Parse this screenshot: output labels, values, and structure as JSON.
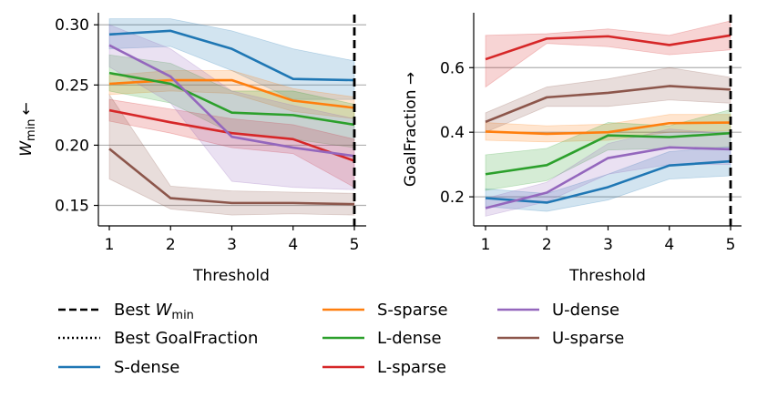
{
  "colors": {
    "S-dense": "#1f77b4",
    "S-sparse": "#ff7f0e",
    "L-dense": "#2ca02c",
    "L-sparse": "#d62728",
    "U-dense": "#9467bd",
    "U-sparse": "#8c564b",
    "grid": "#b0b0b0",
    "axis": "#000000"
  },
  "legend": {
    "best_wmin_prefix": "Best ",
    "best_wmin_var": "W",
    "best_wmin_sub": "min",
    "best_goalfraction": "Best GoalFraction",
    "s_dense": "S-dense",
    "s_sparse": "S-sparse",
    "l_dense": "L-dense",
    "l_sparse": "L-sparse",
    "u_dense": "U-dense",
    "u_sparse": "U-sparse"
  },
  "chart_data": [
    {
      "type": "line",
      "xlabel": "Threshold",
      "ylabel_var": "W",
      "ylabel_sub": "min",
      "ylabel_arrow": "←",
      "x": [
        1,
        2,
        3,
        4,
        5
      ],
      "xticks": [
        "1",
        "2",
        "3",
        "4",
        "5"
      ],
      "yticks": [
        "0.15",
        "0.20",
        "0.25",
        "0.30"
      ],
      "ytick_values": [
        0.15,
        0.2,
        0.25,
        0.3
      ],
      "ylim": [
        0.133,
        0.31
      ],
      "grid": "horizontal",
      "best_line_x": 5,
      "series": [
        {
          "name": "S-dense",
          "values": [
            0.292,
            0.295,
            0.28,
            0.255,
            0.254
          ],
          "lower": [
            0.28,
            0.282,
            0.262,
            0.238,
            0.238
          ],
          "upper": [
            0.305,
            0.305,
            0.295,
            0.28,
            0.27
          ]
        },
        {
          "name": "S-sparse",
          "values": [
            0.251,
            0.254,
            0.254,
            0.237,
            0.231
          ],
          "lower": [
            0.242,
            0.245,
            0.243,
            0.228,
            0.222
          ],
          "upper": [
            0.258,
            0.262,
            0.262,
            0.247,
            0.24
          ]
        },
        {
          "name": "L-dense",
          "values": [
            0.26,
            0.251,
            0.227,
            0.225,
            0.217
          ],
          "lower": [
            0.245,
            0.235,
            0.21,
            0.205,
            0.198
          ],
          "upper": [
            0.275,
            0.268,
            0.245,
            0.245,
            0.234
          ]
        },
        {
          "name": "L-sparse",
          "values": [
            0.229,
            0.219,
            0.21,
            0.205,
            0.187
          ],
          "lower": [
            0.22,
            0.21,
            0.198,
            0.193,
            0.165
          ],
          "upper": [
            0.238,
            0.23,
            0.222,
            0.217,
            0.205
          ]
        },
        {
          "name": "U-dense",
          "values": [
            0.283,
            0.257,
            0.207,
            0.198,
            0.191
          ],
          "lower": [
            0.265,
            0.235,
            0.17,
            0.165,
            0.163
          ],
          "upper": [
            0.3,
            0.28,
            0.245,
            0.233,
            0.222
          ]
        },
        {
          "name": "U-sparse",
          "values": [
            0.197,
            0.156,
            0.152,
            0.152,
            0.151
          ],
          "lower": [
            0.172,
            0.147,
            0.142,
            0.143,
            0.142
          ],
          "upper": [
            0.242,
            0.166,
            0.162,
            0.161,
            0.16
          ]
        }
      ]
    },
    {
      "type": "line",
      "xlabel": "Threshold",
      "ylabel": "GoalFraction →",
      "x": [
        1,
        2,
        3,
        4,
        5
      ],
      "xticks": [
        "1",
        "2",
        "3",
        "4",
        "5"
      ],
      "yticks": [
        "0.2",
        "0.4",
        "0.6"
      ],
      "ytick_values": [
        0.2,
        0.4,
        0.6
      ],
      "ylim": [
        0.11,
        0.77
      ],
      "grid": "horizontal",
      "best_line_x": 5,
      "series": [
        {
          "name": "S-dense",
          "values": [
            0.196,
            0.182,
            0.23,
            0.297,
            0.31
          ],
          "lower": [
            0.17,
            0.155,
            0.19,
            0.255,
            0.265
          ],
          "upper": [
            0.225,
            0.21,
            0.27,
            0.34,
            0.355
          ]
        },
        {
          "name": "S-sparse",
          "values": [
            0.402,
            0.395,
            0.4,
            0.428,
            0.43
          ],
          "lower": [
            0.375,
            0.37,
            0.375,
            0.4,
            0.405
          ],
          "upper": [
            0.43,
            0.42,
            0.425,
            0.455,
            0.455
          ]
        },
        {
          "name": "L-dense",
          "values": [
            0.27,
            0.298,
            0.39,
            0.385,
            0.397
          ],
          "lower": [
            0.22,
            0.25,
            0.345,
            0.35,
            0.355
          ],
          "upper": [
            0.33,
            0.35,
            0.43,
            0.42,
            0.47
          ]
        },
        {
          "name": "L-sparse",
          "values": [
            0.626,
            0.69,
            0.697,
            0.67,
            0.7
          ],
          "lower": [
            0.54,
            0.675,
            0.665,
            0.64,
            0.655
          ],
          "upper": [
            0.7,
            0.705,
            0.72,
            0.7,
            0.745
          ]
        },
        {
          "name": "U-dense",
          "values": [
            0.165,
            0.213,
            0.32,
            0.353,
            0.347
          ],
          "lower": [
            0.14,
            0.185,
            0.27,
            0.3,
            0.3
          ],
          "upper": [
            0.195,
            0.245,
            0.365,
            0.41,
            0.395
          ]
        },
        {
          "name": "U-sparse",
          "values": [
            0.432,
            0.508,
            0.522,
            0.543,
            0.532
          ],
          "lower": [
            0.4,
            0.48,
            0.48,
            0.5,
            0.49
          ],
          "upper": [
            0.46,
            0.54,
            0.565,
            0.6,
            0.57
          ]
        }
      ]
    }
  ]
}
